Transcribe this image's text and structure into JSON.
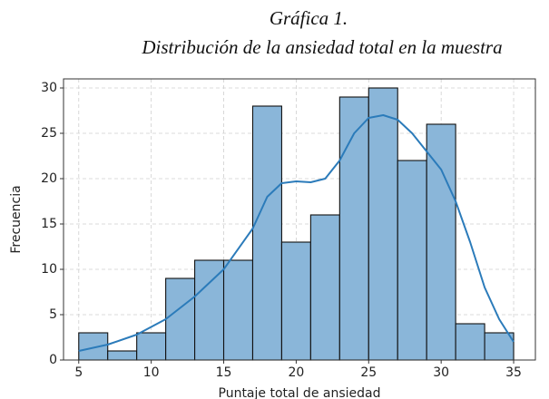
{
  "chart_data": {
    "type": "histogram",
    "title": "Gráfica 1.",
    "subtitle": "Distribución de la ansiedad total en la muestra",
    "x_label": "Puntaje total de ansiedad",
    "y_label": "Frecuencia",
    "bins": [
      5,
      7,
      9,
      11,
      13,
      15,
      17,
      19,
      21,
      23,
      25,
      27,
      29,
      31,
      33,
      35
    ],
    "values": [
      3,
      1,
      3,
      9,
      11,
      11,
      28,
      13,
      16,
      29,
      30,
      22,
      26,
      4,
      3
    ],
    "color": "#8ab6d9",
    "kde": {
      "color": "#2b7bba",
      "x": [
        5,
        7,
        9,
        11,
        13,
        15,
        17,
        18,
        19,
        20,
        21,
        22,
        23,
        24,
        25,
        26,
        27,
        28,
        29,
        30,
        31,
        32,
        33,
        34,
        35
      ],
      "values": [
        1,
        1.7,
        2.8,
        4.5,
        7,
        10,
        14.5,
        18,
        19.5,
        19.7,
        19.6,
        20,
        22,
        25,
        26.7,
        27,
        26.5,
        25,
        23,
        21,
        17.5,
        13,
        8,
        4.5,
        2
      ]
    },
    "xlim": [
      3.95,
      36.5
    ],
    "ylim": [
      0,
      31
    ],
    "xticks": [
      5,
      10,
      15,
      20,
      25,
      30,
      35
    ],
    "yticks": [
      0,
      5,
      10,
      15,
      20,
      25,
      30
    ],
    "grid": true
  }
}
